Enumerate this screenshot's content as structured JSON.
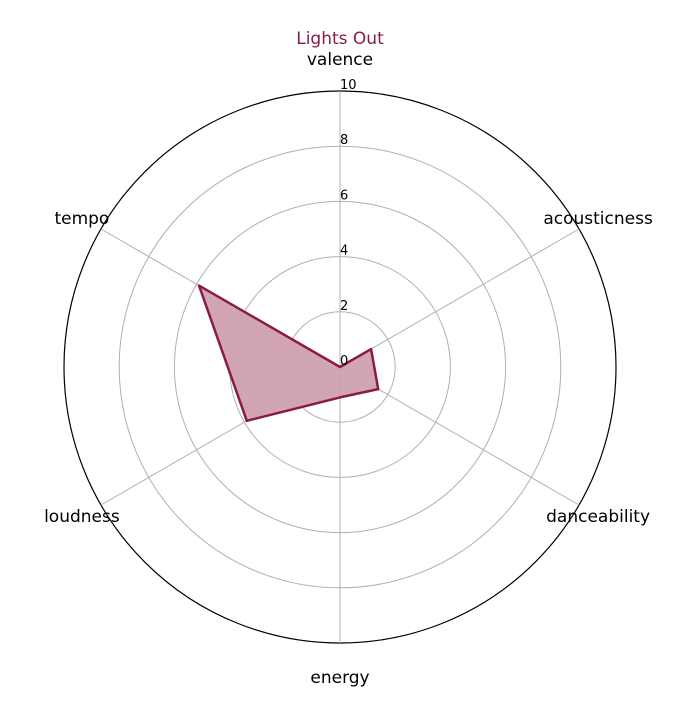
{
  "chart_data": {
    "type": "radar",
    "title": "Lights Out",
    "axes": [
      "valence",
      "acousticness",
      "danceability",
      "energy",
      "loudness",
      "tempo"
    ],
    "series": [
      {
        "values": [
          0,
          1.3,
          1.6,
          1.1,
          3.9,
          5.9
        ]
      }
    ],
    "rlim": [
      0,
      10
    ],
    "r_ticks": [
      0,
      2,
      4,
      6,
      8,
      10
    ],
    "grid": true,
    "colors": {
      "line": "#8b1a4a",
      "fill": "#cfa0b0"
    }
  }
}
